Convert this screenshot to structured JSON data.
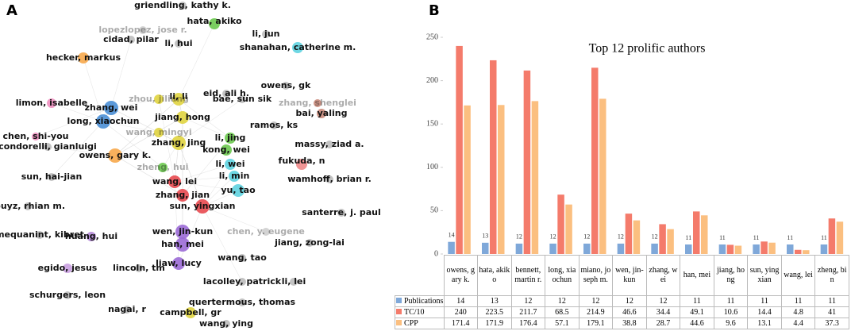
{
  "chart_data": [
    {
      "type": "network",
      "panel_label": "A",
      "nodes": [
        {
          "label": "griendling, kathy k.",
          "color": "#bdbdbd"
        },
        {
          "label": "lopezlopez, jose r.",
          "color": "#cfcfcf"
        },
        {
          "label": "cidad, pilar",
          "color": "#bdbdbd"
        },
        {
          "label": "hata, akiko",
          "color": "#6cc94f"
        },
        {
          "label": "li, jun",
          "color": "#bdbdbd"
        },
        {
          "label": "li, hui",
          "color": "#bdbdbd"
        },
        {
          "label": "shanahan, catherine m.",
          "color": "#5ed3e0"
        },
        {
          "label": "hecker, markus",
          "color": "#f7a94b"
        },
        {
          "label": "eid, ali h.",
          "color": "#bdbdbd"
        },
        {
          "label": "owens, gk",
          "color": "#bdbdbd"
        },
        {
          "label": "limon, isabelle",
          "color": "#f08fc0"
        },
        {
          "label": "zhou, jiliang",
          "color": "#e0d440"
        },
        {
          "label": "li, li",
          "color": "#e0d440"
        },
        {
          "label": "bae, sun sik",
          "color": "#bdbdbd"
        },
        {
          "label": "zhang, shenglei",
          "color": "#c98a7a"
        },
        {
          "label": "bai, yaling",
          "color": "#c98a7a"
        },
        {
          "label": "zhang, wei",
          "color": "#4a8fd6"
        },
        {
          "label": "long, xiaochun",
          "color": "#4a8fd6"
        },
        {
          "label": "jiang, hong",
          "color": "#e0d440"
        },
        {
          "label": "ramos, ks",
          "color": "#bdbdbd"
        },
        {
          "label": "chen, shi-you",
          "color": "#f08fc0"
        },
        {
          "label": "condorelli, gianluigi",
          "color": "#bdbdbd"
        },
        {
          "label": "wang, mingyi",
          "color": "#e0d440"
        },
        {
          "label": "zhang, jing",
          "color": "#e0d440"
        },
        {
          "label": "li, jing",
          "color": "#6cc94f"
        },
        {
          "label": "kong, wei",
          "color": "#6cc94f"
        },
        {
          "label": "massy, ziad a.",
          "color": "#bdbdbd"
        },
        {
          "label": "owens, gary k.",
          "color": "#f7a94b"
        },
        {
          "label": "zheng, hui",
          "color": "#6cc94f"
        },
        {
          "label": "li, wei",
          "color": "#5ed3e0"
        },
        {
          "label": "fukuda, n",
          "color": "#f08a8a"
        },
        {
          "label": "sun, hai-jian",
          "color": "#bdbdbd"
        },
        {
          "label": "li, min",
          "color": "#5ed3e0"
        },
        {
          "label": "wamhoff, brian r.",
          "color": "#bdbdbd"
        },
        {
          "label": "wang, lei",
          "color": "#e8494f"
        },
        {
          "label": "yu, tao",
          "color": "#5ed3e0"
        },
        {
          "label": "zhang, jian",
          "color": "#e8494f"
        },
        {
          "label": "sun, yingxian",
          "color": "#e8494f"
        },
        {
          "label": "touyz, rhian m.",
          "color": "#bdbdbd"
        },
        {
          "label": "santerre, j. paul",
          "color": "#bdbdbd"
        },
        {
          "label": "mequanint, kibret",
          "color": "#bdbdbd"
        },
        {
          "label": "huang, hui",
          "color": "#b58ad8"
        },
        {
          "label": "wen, jin-kun",
          "color": "#9b6ad6"
        },
        {
          "label": "han, mei",
          "color": "#9b6ad6"
        },
        {
          "label": "chen, y. eugene",
          "color": "#cfcfcf"
        },
        {
          "label": "jiang, zong-lai",
          "color": "#bdbdbd"
        },
        {
          "label": "wang, tao",
          "color": "#bdbdbd"
        },
        {
          "label": "liaw, lucy",
          "color": "#9b6ad6"
        },
        {
          "label": "egido, jesus",
          "color": "#c9a0e0"
        },
        {
          "label": "lincoln, tm",
          "color": "#bdbdbd"
        },
        {
          "label": "lacolley, patrick",
          "color": "#bdbdbd"
        },
        {
          "label": "li, lei",
          "color": "#bdbdbd"
        },
        {
          "label": "schurgers, leon",
          "color": "#bdbdbd"
        },
        {
          "label": "quertermous, thomas",
          "color": "#bdbdbd"
        },
        {
          "label": "nagai, r",
          "color": "#bdbdbd"
        },
        {
          "label": "campbell, gr",
          "color": "#e0d440"
        },
        {
          "label": "wang, ying",
          "color": "#bdbdbd"
        }
      ]
    },
    {
      "type": "bar",
      "panel_label": "B",
      "title": "Top 12 prolific authors",
      "categories": [
        "owens, gary k.",
        "hata, akiko",
        "bennett, martin r.",
        "long, xiaochun",
        "miano, joseph m.",
        "wen, jin-kun",
        "zhang, wei",
        "han, mei",
        "jiang, hong",
        "sun, yingxian",
        "wang, lei",
        "zheng, bin"
      ],
      "series": [
        {
          "name": "Publications",
          "color": "#7fa8d9",
          "values": [
            14,
            13,
            12,
            12,
            12,
            12,
            12,
            11,
            11,
            11,
            11,
            11
          ]
        },
        {
          "name": "TC/10",
          "color": "#f47b6b",
          "values": [
            240,
            223.5,
            211.7,
            68.5,
            214.9,
            46.6,
            34.4,
            49.1,
            10.6,
            14.4,
            4.8,
            41
          ]
        },
        {
          "name": "CPP",
          "color": "#fbbf80",
          "values": [
            171.4,
            171.9,
            176.4,
            57.1,
            179.1,
            38.8,
            28.7,
            44.6,
            9.6,
            13.1,
            4.4,
            37.3
          ]
        }
      ],
      "ylim": [
        0,
        250
      ],
      "yticks": [
        0,
        50,
        100,
        150,
        200,
        250
      ]
    }
  ]
}
